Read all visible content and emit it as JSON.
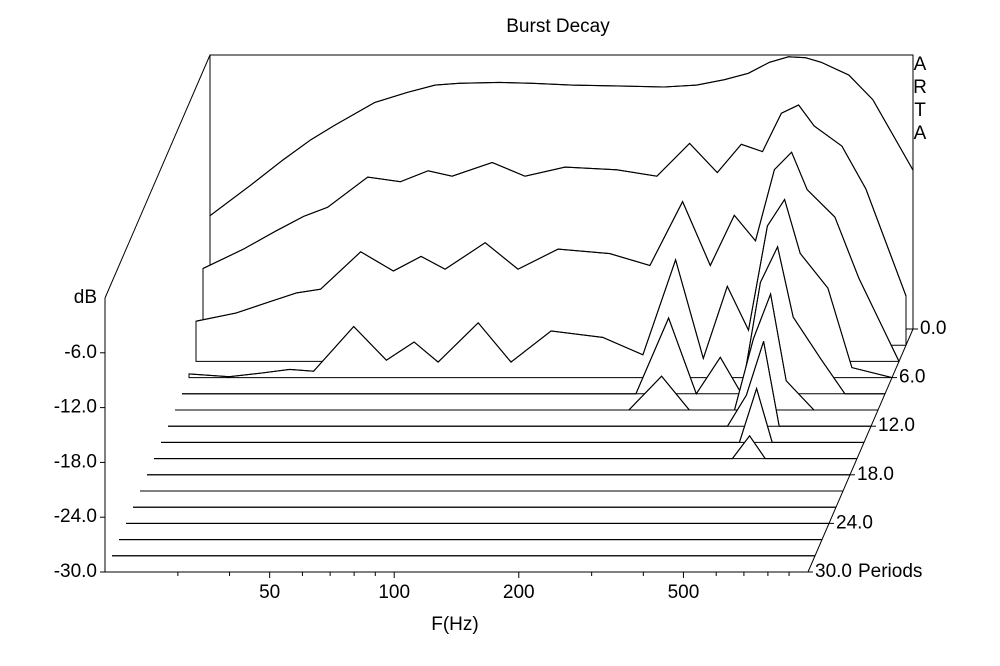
{
  "chart_data": {
    "type": "waterfall",
    "title": "Burst Decay",
    "xlabel": "F(Hz)",
    "ylabel": "dB",
    "zlabel": "Periods",
    "watermark": "ARTA",
    "xscale": "log",
    "xlim": [
      20,
      1000
    ],
    "xticks": [
      50,
      100,
      200,
      500
    ],
    "xminorticks": [
      30,
      40,
      60,
      70,
      80,
      90,
      300,
      400,
      600,
      700,
      800,
      900
    ],
    "ylim": [
      -30,
      0
    ],
    "yticks": [
      {
        "value": -6,
        "label": "-6.0"
      },
      {
        "value": -12,
        "label": "-12.0"
      },
      {
        "value": -18,
        "label": "-18.0"
      },
      {
        "value": -24,
        "label": "-24.0"
      },
      {
        "value": -30,
        "label": "-30.0"
      }
    ],
    "zlim": [
      0,
      30
    ],
    "zticks": [
      {
        "value": 0,
        "label": "0.0"
      },
      {
        "value": 6,
        "label": "6.0"
      },
      {
        "value": 12,
        "label": "12.0"
      },
      {
        "value": 18,
        "label": "18.0"
      },
      {
        "value": 24,
        "label": "24.0"
      },
      {
        "value": 30,
        "label": "30.0"
      }
    ],
    "color": "#000000",
    "x": [
      20,
      25,
      30,
      35,
      40,
      50,
      60,
      70,
      80,
      100,
      120,
      150,
      200,
      250,
      300,
      350,
      400,
      450,
      500,
      550,
      600,
      700,
      800,
      1000
    ],
    "slices": [
      {
        "z": 0,
        "values": [
          -17.6,
          -14.3,
          -11.5,
          -9.3,
          -7.7,
          -5.2,
          -4.1,
          -3.3,
          -3.1,
          -3.0,
          -3.1,
          -3.3,
          -3.4,
          -3.5,
          -3.3,
          -2.7,
          -2.0,
          -0.8,
          -0.2,
          -0.3,
          -0.8,
          -2.2,
          -4.9,
          -12.6
        ]
      },
      {
        "z": 2,
        "values": [
          -21.6,
          -19.5,
          -17.5,
          -15.9,
          -14.9,
          -11.6,
          -12.1,
          -10.9,
          -11.5,
          -10.0,
          -11.5,
          -10.5,
          -10.8,
          -11.5,
          -7.9,
          -11.1,
          -8.0,
          -8.8,
          -4.6,
          -3.7,
          -6.0,
          -8.2,
          -12.9,
          -24.6
        ]
      },
      {
        "z": 4,
        "values": [
          -25.6,
          -24.7,
          -23.5,
          -22.5,
          -22.1,
          -18.0,
          -20.1,
          -18.5,
          -19.9,
          -17.0,
          -19.9,
          -17.7,
          -18.2,
          -19.5,
          -12.5,
          -19.5,
          -14.0,
          -16.8,
          -9.0,
          -7.1,
          -11.2,
          -14.2,
          -20.9,
          -30
        ]
      },
      {
        "z": 6,
        "values": [
          -29.6,
          -29.9,
          -29.5,
          -29.1,
          -29.3,
          -24.4,
          -28.1,
          -26.1,
          -28.3,
          -24.0,
          -28.3,
          -24.9,
          -25.6,
          -27.5,
          -17.1,
          -27.9,
          -20.0,
          -24.8,
          -13.4,
          -10.5,
          -16.4,
          -20.2,
          -28.9,
          -30
        ]
      },
      {
        "z": 8,
        "values": [
          -30,
          -30,
          -30,
          -30,
          -30,
          -30,
          -30,
          -30,
          -30,
          -30,
          -30,
          -30,
          -30,
          -30,
          -21.7,
          -30,
          -26.0,
          -30,
          -17.8,
          -13.9,
          -21.6,
          -26.2,
          -30,
          -30
        ]
      },
      {
        "z": 10,
        "values": [
          -30,
          -30,
          -30,
          -30,
          -30,
          -30,
          -30,
          -30,
          -30,
          -30,
          -30,
          -30,
          -30,
          -30,
          -26.3,
          -30,
          -30,
          -30,
          -22.2,
          -17.3,
          -26.8,
          -30,
          -30,
          -30
        ]
      },
      {
        "z": 12,
        "values": [
          -30,
          -30,
          -30,
          -30,
          -30,
          -30,
          -30,
          -30,
          -30,
          -30,
          -30,
          -30,
          -30,
          -30,
          -30,
          -30,
          -30,
          -30,
          -26.6,
          -20.7,
          -30,
          -30,
          -30,
          -30
        ]
      },
      {
        "z": 14,
        "values": [
          -30,
          -30,
          -30,
          -30,
          -30,
          -30,
          -30,
          -30,
          -30,
          -30,
          -30,
          -30,
          -30,
          -30,
          -30,
          -30,
          -30,
          -30,
          -30,
          -24.1,
          -30,
          -30,
          -30,
          -30
        ]
      },
      {
        "z": 16,
        "values": [
          -30,
          -30,
          -30,
          -30,
          -30,
          -30,
          -30,
          -30,
          -30,
          -30,
          -30,
          -30,
          -30,
          -30,
          -30,
          -30,
          -30,
          -30,
          -30,
          -27.5,
          -30,
          -30,
          -30,
          -30
        ]
      },
      {
        "z": 18,
        "values": [
          -30,
          -30,
          -30,
          -30,
          -30,
          -30,
          -30,
          -30,
          -30,
          -30,
          -30,
          -30,
          -30,
          -30,
          -30,
          -30,
          -30,
          -30,
          -30,
          -30,
          -30,
          -30,
          -30,
          -30
        ]
      },
      {
        "z": 20,
        "values": [
          -30,
          -30,
          -30,
          -30,
          -30,
          -30,
          -30,
          -30,
          -30,
          -30,
          -30,
          -30,
          -30,
          -30,
          -30,
          -30,
          -30,
          -30,
          -30,
          -30,
          -30,
          -30,
          -30,
          -30
        ]
      },
      {
        "z": 22,
        "values": [
          -30,
          -30,
          -30,
          -30,
          -30,
          -30,
          -30,
          -30,
          -30,
          -30,
          -30,
          -30,
          -30,
          -30,
          -30,
          -30,
          -30,
          -30,
          -30,
          -30,
          -30,
          -30,
          -30,
          -30
        ]
      },
      {
        "z": 24,
        "values": [
          -30,
          -30,
          -30,
          -30,
          -30,
          -30,
          -30,
          -30,
          -30,
          -30,
          -30,
          -30,
          -30,
          -30,
          -30,
          -30,
          -30,
          -30,
          -30,
          -30,
          -30,
          -30,
          -30,
          -30
        ]
      },
      {
        "z": 26,
        "values": [
          -30,
          -30,
          -30,
          -30,
          -30,
          -30,
          -30,
          -30,
          -30,
          -30,
          -30,
          -30,
          -30,
          -30,
          -30,
          -30,
          -30,
          -30,
          -30,
          -30,
          -30,
          -30,
          -30,
          -30
        ]
      },
      {
        "z": 28,
        "values": [
          -30,
          -30,
          -30,
          -30,
          -30,
          -30,
          -30,
          -30,
          -30,
          -30,
          -30,
          -30,
          -30,
          -30,
          -30,
          -30,
          -30,
          -30,
          -30,
          -30,
          -30,
          -30,
          -30,
          -30
        ]
      },
      {
        "z": 30,
        "values": [
          -30,
          -30,
          -30,
          -30,
          -30,
          -30,
          -30,
          -30,
          -30,
          -30,
          -30,
          -30,
          -30,
          -30,
          -30,
          -30,
          -30,
          -30,
          -30,
          -30,
          -30,
          -30,
          -30,
          -30
        ]
      }
    ]
  }
}
